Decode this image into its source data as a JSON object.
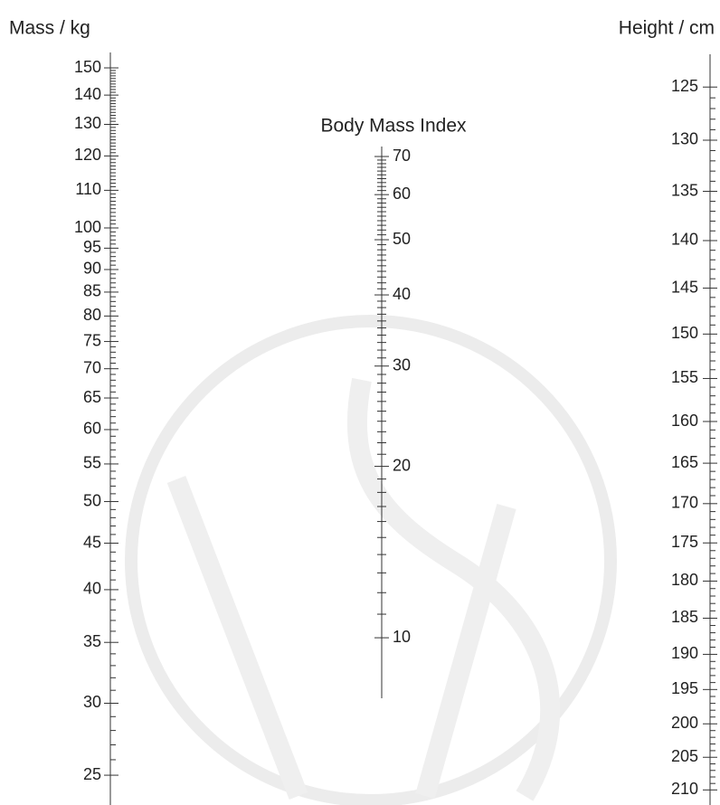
{
  "mass_scale": {
    "title": "Mass / kg",
    "ticks": [
      150,
      140,
      130,
      120,
      110,
      100,
      95,
      90,
      85,
      80,
      75,
      70,
      65,
      60,
      55,
      50,
      45,
      40,
      35,
      30,
      25
    ]
  },
  "bmi_scale": {
    "title": "Body Mass Index",
    "ticks": [
      70,
      60,
      50,
      40,
      30,
      20,
      10
    ]
  },
  "height_scale": {
    "title": "Height / cm",
    "ticks": [
      125,
      130,
      135,
      140,
      145,
      150,
      155,
      160,
      165,
      170,
      175,
      180,
      185,
      190,
      195,
      200,
      205,
      210
    ]
  }
}
